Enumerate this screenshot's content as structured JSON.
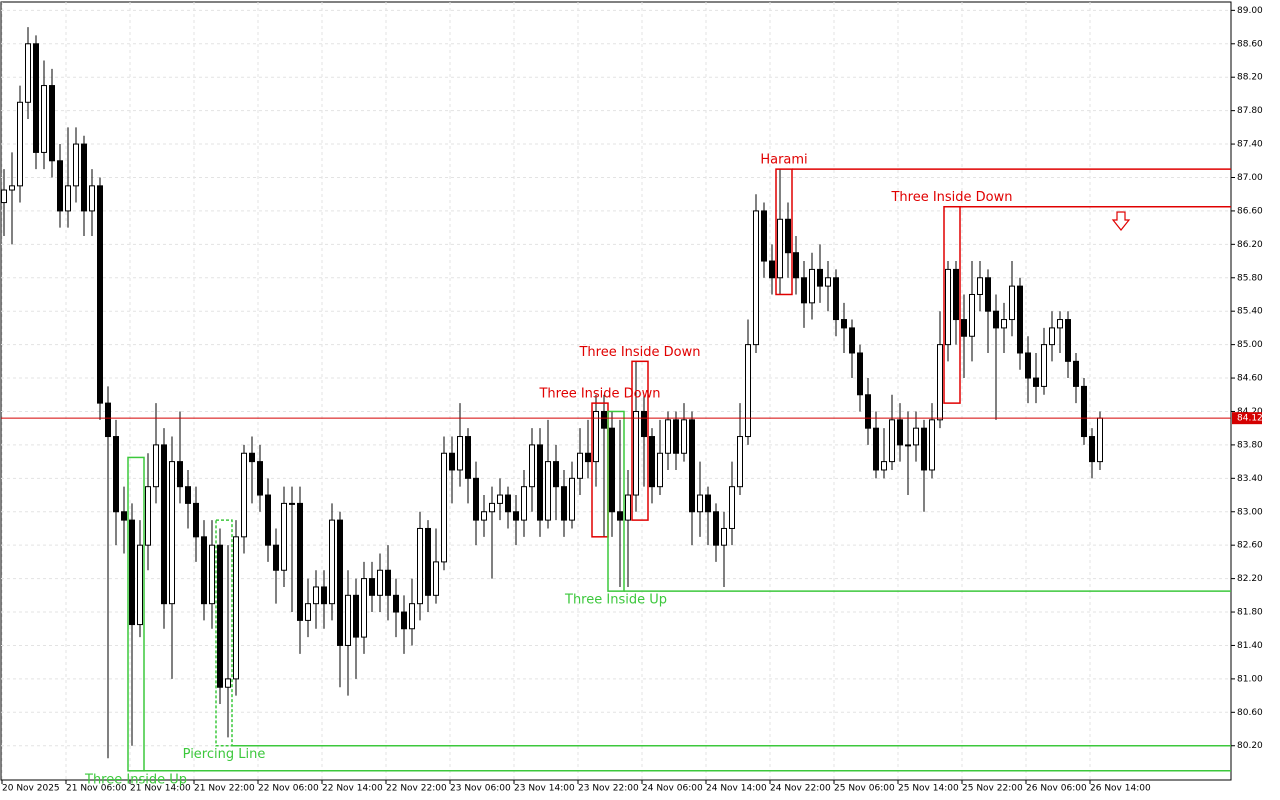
{
  "chart_data": {
    "type": "candlestick",
    "open": [
      86.7,
      86.85,
      86.9,
      87.9,
      88.6,
      87.3,
      88.1,
      87.2,
      86.6,
      86.9,
      87.4,
      86.6,
      86.9,
      84.3,
      83.9,
      83.0,
      82.9,
      81.65,
      82.6,
      83.3,
      83.8,
      81.9,
      83.6,
      83.3,
      83.1,
      82.7,
      81.9,
      82.6,
      80.9,
      81.0,
      82.7,
      83.7,
      83.6,
      83.2,
      82.6,
      82.3,
      83.1,
      83.1,
      81.7,
      81.9,
      82.1,
      81.9,
      82.9,
      81.4,
      82.0,
      81.5,
      82.2,
      82.0,
      82.3,
      82.0,
      81.8,
      81.6,
      81.9,
      82.8,
      82.0,
      82.4,
      83.7,
      83.5,
      83.9,
      83.4,
      82.9,
      83.0,
      83.1,
      83.2,
      83.0,
      82.9,
      83.3,
      83.8,
      82.9,
      83.6,
      83.3,
      82.9,
      83.4,
      83.7,
      83.6,
      84.2,
      84.0,
      83.0,
      82.9,
      83.2,
      84.2,
      83.9,
      83.3,
      83.7,
      84.1,
      83.7,
      84.1,
      83.0,
      83.2,
      83.0,
      82.6,
      82.8,
      83.3,
      83.9,
      85.0,
      86.6,
      86.0,
      85.8,
      86.5,
      86.1,
      85.8,
      85.5,
      85.9,
      85.7,
      85.8,
      85.3,
      85.2,
      84.9,
      84.4,
      84.0,
      83.5,
      83.6,
      84.1,
      83.8,
      83.8,
      84.0,
      83.5,
      84.1,
      85.0,
      85.9,
      85.3,
      85.1,
      85.6,
      85.8,
      85.4,
      85.2,
      85.3,
      85.7,
      84.9,
      84.6,
      84.5,
      85.0,
      85.2,
      85.3,
      84.8,
      84.5,
      83.9,
      83.6
    ],
    "high": [
      87.1,
      87.3,
      88.1,
      88.8,
      88.7,
      88.4,
      88.3,
      87.4,
      87.6,
      87.6,
      87.5,
      87.1,
      87.0,
      84.5,
      84.1,
      83.3,
      83.1,
      82.9,
      83.7,
      84.3,
      84.0,
      83.9,
      84.2,
      83.5,
      83.3,
      82.9,
      82.9,
      82.8,
      82.6,
      82.9,
      83.8,
      83.9,
      83.8,
      83.4,
      82.8,
      83.3,
      83.3,
      83.3,
      82.2,
      82.3,
      82.3,
      83.1,
      83.0,
      82.3,
      82.2,
      82.4,
      82.4,
      82.5,
      82.6,
      82.2,
      82.0,
      82.2,
      83.0,
      82.9,
      82.8,
      83.9,
      83.9,
      84.3,
      84.0,
      83.6,
      83.2,
      83.3,
      83.4,
      83.3,
      83.2,
      83.5,
      84.0,
      84.0,
      84.1,
      83.8,
      83.5,
      83.6,
      84.0,
      84.1,
      84.4,
      84.4,
      84.2,
      84.1,
      83.5,
      84.8,
      84.4,
      84.0,
      84.1,
      84.2,
      84.2,
      84.3,
      84.2,
      83.6,
      83.3,
      83.1,
      83.0,
      83.6,
      84.3,
      85.3,
      86.8,
      86.7,
      86.2,
      87.1,
      86.7,
      86.3,
      86.0,
      86.1,
      86.2,
      86.0,
      85.9,
      85.5,
      85.3,
      85.0,
      84.6,
      84.2,
      84.0,
      84.4,
      84.3,
      84.2,
      84.2,
      84.1,
      84.3,
      85.4,
      86.0,
      86.0,
      85.6,
      86.0,
      86.0,
      85.9,
      85.6,
      85.5,
      86.0,
      85.8,
      85.1,
      84.9,
      85.2,
      85.4,
      85.4,
      85.4,
      84.9,
      84.6,
      84.0,
      84.2
    ],
    "low": [
      86.3,
      86.2,
      86.7,
      87.7,
      87.1,
      87.1,
      87.0,
      86.4,
      86.4,
      86.7,
      86.3,
      86.3,
      84.1,
      80.05,
      82.6,
      82.5,
      80.2,
      81.5,
      82.3,
      83.1,
      81.6,
      81.0,
      83.1,
      82.8,
      82.4,
      81.7,
      81.6,
      80.7,
      80.3,
      80.8,
      82.5,
      83.1,
      83.0,
      82.4,
      81.9,
      82.1,
      81.8,
      81.3,
      81.5,
      81.6,
      81.6,
      81.7,
      80.9,
      80.8,
      81.0,
      81.3,
      81.8,
      81.8,
      81.7,
      81.5,
      81.3,
      81.4,
      81.7,
      81.8,
      81.9,
      82.3,
      83.1,
      83.3,
      83.1,
      82.6,
      82.7,
      82.2,
      82.9,
      82.8,
      82.6,
      82.7,
      83.0,
      82.7,
      82.8,
      82.9,
      82.7,
      82.8,
      83.2,
      83.4,
      83.3,
      82.7,
      82.7,
      82.1,
      82.1,
      83.0,
      83.3,
      83.1,
      83.2,
      83.5,
      83.5,
      83.6,
      82.6,
      82.7,
      82.6,
      82.4,
      82.1,
      82.6,
      83.2,
      83.8,
      84.9,
      85.8,
      85.6,
      85.6,
      85.8,
      85.6,
      85.2,
      85.3,
      85.5,
      85.4,
      85.1,
      84.9,
      84.6,
      84.2,
      83.8,
      83.4,
      83.4,
      83.5,
      83.6,
      83.2,
      83.6,
      83.0,
      83.4,
      84.0,
      84.8,
      85.0,
      84.6,
      84.8,
      85.4,
      84.9,
      84.1,
      84.9,
      85.1,
      84.7,
      84.3,
      84.3,
      84.4,
      84.8,
      84.9,
      84.6,
      84.3,
      83.8,
      83.4,
      83.5
    ],
    "close": [
      86.85,
      86.9,
      87.9,
      88.6,
      87.3,
      88.1,
      87.2,
      86.6,
      86.9,
      87.4,
      86.6,
      86.9,
      84.3,
      83.9,
      83.0,
      82.9,
      81.65,
      82.6,
      83.3,
      83.8,
      81.9,
      83.6,
      83.3,
      83.1,
      82.7,
      81.9,
      82.6,
      80.9,
      81.0,
      82.7,
      83.7,
      83.6,
      83.2,
      82.6,
      82.3,
      83.1,
      83.1,
      81.7,
      81.9,
      82.1,
      81.9,
      82.9,
      81.4,
      82.0,
      81.5,
      82.2,
      82.0,
      82.3,
      82.0,
      81.8,
      81.6,
      81.9,
      82.8,
      82.0,
      82.4,
      83.7,
      83.5,
      83.9,
      83.4,
      82.9,
      83.0,
      83.1,
      83.2,
      83.0,
      82.9,
      83.3,
      83.8,
      82.9,
      83.6,
      83.3,
      82.9,
      83.4,
      83.7,
      83.6,
      84.2,
      84.0,
      83.0,
      82.9,
      83.2,
      84.2,
      83.9,
      83.3,
      83.7,
      84.1,
      83.7,
      84.1,
      83.0,
      83.2,
      83.0,
      82.6,
      82.8,
      83.3,
      83.9,
      85.0,
      86.6,
      86.0,
      85.8,
      86.5,
      86.1,
      85.8,
      85.5,
      85.9,
      85.7,
      85.8,
      85.3,
      85.2,
      84.9,
      84.4,
      84.0,
      83.5,
      83.6,
      84.1,
      83.8,
      83.8,
      84.0,
      83.5,
      84.1,
      85.0,
      85.9,
      85.3,
      85.1,
      85.6,
      85.8,
      85.4,
      85.2,
      85.3,
      85.7,
      84.9,
      84.6,
      84.5,
      85.0,
      85.2,
      85.3,
      84.8,
      84.5,
      83.9,
      83.6,
      84.12
    ],
    "current_price": 84.12,
    "current_price_color": "#d40000",
    "ylim": [
      79.79,
      89.1
    ],
    "yticks": [
      {
        "value": 89.0,
        "label": "89.00"
      },
      {
        "value": 88.6,
        "label": "88.60"
      },
      {
        "value": 88.2,
        "label": "88.20"
      },
      {
        "value": 87.8,
        "label": "87.80"
      },
      {
        "value": 87.4,
        "label": "87.40"
      },
      {
        "value": 87.0,
        "label": "87.00"
      },
      {
        "value": 86.6,
        "label": "86.60"
      },
      {
        "value": 86.2,
        "label": "86.20"
      },
      {
        "value": 85.8,
        "label": "85.80"
      },
      {
        "value": 85.4,
        "label": "85.40"
      },
      {
        "value": 85.0,
        "label": "85.00"
      },
      {
        "value": 84.6,
        "label": "84.60"
      },
      {
        "value": 84.2,
        "label": "84.20"
      },
      {
        "value": 83.8,
        "label": "83.80"
      },
      {
        "value": 83.4,
        "label": "83.40"
      },
      {
        "value": 83.0,
        "label": "83.00"
      },
      {
        "value": 82.6,
        "label": "82.60"
      },
      {
        "value": 82.2,
        "label": "82.20"
      },
      {
        "value": 81.8,
        "label": "81.80"
      },
      {
        "value": 81.4,
        "label": "81.40"
      },
      {
        "value": 81.0,
        "label": "81.00"
      },
      {
        "value": 80.6,
        "label": "80.60"
      },
      {
        "value": 80.2,
        "label": "80.20"
      }
    ],
    "xticks": [
      {
        "value": 0,
        "label": "20 Nov 2025"
      },
      {
        "value": 8,
        "label": "21 Nov 06:00"
      },
      {
        "value": 16,
        "label": "21 Nov 14:00"
      },
      {
        "value": 24,
        "label": "21 Nov 22:00"
      },
      {
        "value": 32,
        "label": "22 Nov 06:00"
      },
      {
        "value": 40,
        "label": "22 Nov 14:00"
      },
      {
        "value": 48,
        "label": "22 Nov 22:00"
      },
      {
        "value": 56,
        "label": "23 Nov 06:00"
      },
      {
        "value": 64,
        "label": "23 Nov 14:00"
      },
      {
        "value": 72,
        "label": "23 Nov 22:00"
      },
      {
        "value": 80,
        "label": "24 Nov 06:00"
      },
      {
        "value": 88,
        "label": "24 Nov 14:00"
      },
      {
        "value": 96,
        "label": "24 Nov 22:00"
      },
      {
        "value": 104,
        "label": "25 Nov 06:00"
      },
      {
        "value": 112,
        "label": "25 Nov 14:00"
      },
      {
        "value": 120,
        "label": "25 Nov 22:00"
      },
      {
        "value": 128,
        "label": "26 Nov 06:00"
      },
      {
        "value": 136,
        "label": "26 Nov 14:00"
      }
    ],
    "grid": true,
    "patterns": [
      {
        "label": "Three Inside Up",
        "color": "#3cc83c",
        "start": 16,
        "end": 17,
        "high": 83.65,
        "low": 79.9,
        "level": 79.9,
        "side": "below"
      },
      {
        "label": "Piercing Line",
        "color": "#3cc83c",
        "start": 27,
        "end": 28,
        "high": 82.9,
        "low": 80.2,
        "level": 80.2,
        "side": "below",
        "dashed": true
      },
      {
        "label": "Three Inside Down",
        "color": "#e00000",
        "start": 74,
        "end": 75,
        "high": 84.3,
        "low": 82.7,
        "side": "above"
      },
      {
        "label": "Three Inside Up",
        "color": "#3cc83c",
        "start": 76,
        "end": 77,
        "high": 84.2,
        "low": 82.05,
        "level": 82.05,
        "side": "below"
      },
      {
        "label": "Three Inside Down",
        "color": "#e00000",
        "start": 79,
        "end": 80,
        "high": 84.8,
        "low": 82.9,
        "side": "above"
      },
      {
        "label": "Harami",
        "color": "#e00000",
        "start": 97,
        "end": 98,
        "high": 87.1,
        "low": 85.6,
        "level": 87.1,
        "side": "above"
      },
      {
        "label": "Three Inside Down",
        "color": "#e00000",
        "start": 118,
        "end": 119,
        "high": 86.65,
        "low": 84.3,
        "level": 86.65,
        "side": "above"
      }
    ]
  }
}
